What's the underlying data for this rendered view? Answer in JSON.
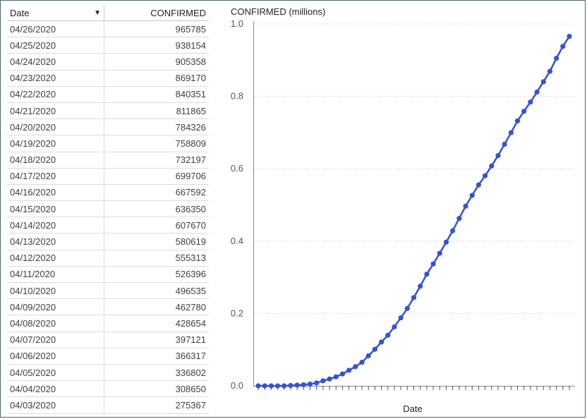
{
  "table": {
    "headers": {
      "date": "Date",
      "confirmed": "CONFIRMED"
    },
    "sort_icon": "sort-down-triangle",
    "rows": [
      {
        "date": "04/26/2020",
        "confirmed": "965785"
      },
      {
        "date": "04/25/2020",
        "confirmed": "938154"
      },
      {
        "date": "04/24/2020",
        "confirmed": "905358"
      },
      {
        "date": "04/23/2020",
        "confirmed": "869170"
      },
      {
        "date": "04/22/2020",
        "confirmed": "840351"
      },
      {
        "date": "04/21/2020",
        "confirmed": "811865"
      },
      {
        "date": "04/20/2020",
        "confirmed": "784326"
      },
      {
        "date": "04/19/2020",
        "confirmed": "758809"
      },
      {
        "date": "04/18/2020",
        "confirmed": "732197"
      },
      {
        "date": "04/17/2020",
        "confirmed": "699706"
      },
      {
        "date": "04/16/2020",
        "confirmed": "667592"
      },
      {
        "date": "04/15/2020",
        "confirmed": "636350"
      },
      {
        "date": "04/14/2020",
        "confirmed": "607670"
      },
      {
        "date": "04/13/2020",
        "confirmed": "580619"
      },
      {
        "date": "04/12/2020",
        "confirmed": "555313"
      },
      {
        "date": "04/11/2020",
        "confirmed": "526396"
      },
      {
        "date": "04/10/2020",
        "confirmed": "496535"
      },
      {
        "date": "04/09/2020",
        "confirmed": "462780"
      },
      {
        "date": "04/08/2020",
        "confirmed": "428654"
      },
      {
        "date": "04/07/2020",
        "confirmed": "397121"
      },
      {
        "date": "04/06/2020",
        "confirmed": "366317"
      },
      {
        "date": "04/05/2020",
        "confirmed": "336802"
      },
      {
        "date": "04/04/2020",
        "confirmed": "308650"
      },
      {
        "date": "04/03/2020",
        "confirmed": "275367"
      }
    ]
  },
  "chart_data": {
    "type": "line",
    "title": "CONFIRMED (millions)",
    "xlabel": "Date",
    "ylabel": "",
    "ylim": [
      0,
      1.0
    ],
    "yticks": [
      "0.0",
      "0.2",
      "0.4",
      "0.6",
      "0.8",
      "1.0"
    ],
    "grid": "horizontal-dotted",
    "line_color": "#3351e0",
    "series": [
      {
        "values": [
          0.0,
          0.0,
          0.0,
          0.0,
          0.0,
          0.001,
          0.002,
          0.003,
          0.005,
          0.008,
          0.014,
          0.019,
          0.025,
          0.033,
          0.043,
          0.053,
          0.065,
          0.083,
          0.101,
          0.121,
          0.14,
          0.163,
          0.188,
          0.214,
          0.244,
          0.275367,
          0.30865,
          0.336802,
          0.366317,
          0.397121,
          0.428654,
          0.46278,
          0.496535,
          0.526396,
          0.555313,
          0.580619,
          0.60767,
          0.63635,
          0.667592,
          0.699706,
          0.732197,
          0.758809,
          0.784326,
          0.811865,
          0.840351,
          0.86917,
          0.905358,
          0.938154,
          0.965785
        ]
      }
    ]
  }
}
